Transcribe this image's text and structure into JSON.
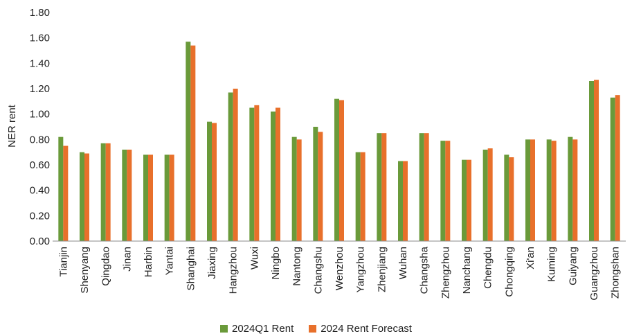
{
  "chart_data": {
    "type": "bar",
    "ylabel": "NER rent",
    "xlabel": "",
    "ylim": [
      0,
      1.8
    ],
    "ytick_step": 0.2,
    "grid": false,
    "legend_position": "bottom",
    "categories": [
      "Tianjin",
      "Shenyang",
      "Qingdao",
      "Jinan",
      "Harbin",
      "Yantai",
      "Shanghai",
      "Jiaxing",
      "Hangzhou",
      "Wuxi",
      "Ningbo",
      "Nantong",
      "Changshu",
      "Wenzhou",
      "Yangzhou",
      "Zhenjiang",
      "Wuhan",
      "Changsha",
      "Zhengzhou",
      "Nanchang",
      "Chengdu",
      "Chongqing",
      "Xi'an",
      "Kuming",
      "Guiyang",
      "Guangzhou",
      "Zhongshan"
    ],
    "series": [
      {
        "name": "2024Q1 Rent",
        "color": "#6a9a3a",
        "values": [
          0.82,
          0.7,
          0.77,
          0.72,
          0.68,
          0.68,
          1.57,
          0.94,
          1.17,
          1.05,
          1.02,
          0.82,
          0.9,
          1.12,
          0.7,
          0.85,
          0.63,
          0.85,
          0.79,
          0.64,
          0.72,
          0.68,
          0.8,
          0.8,
          0.82,
          1.26,
          1.13
        ]
      },
      {
        "name": "2024 Rent Forecast",
        "color": "#e8702b",
        "values": [
          0.75,
          0.69,
          0.77,
          0.72,
          0.68,
          0.68,
          1.54,
          0.93,
          1.2,
          1.07,
          1.05,
          0.8,
          0.86,
          1.11,
          0.7,
          0.85,
          0.63,
          0.85,
          0.79,
          0.64,
          0.73,
          0.66,
          0.8,
          0.79,
          0.8,
          1.27,
          1.15
        ]
      }
    ]
  }
}
